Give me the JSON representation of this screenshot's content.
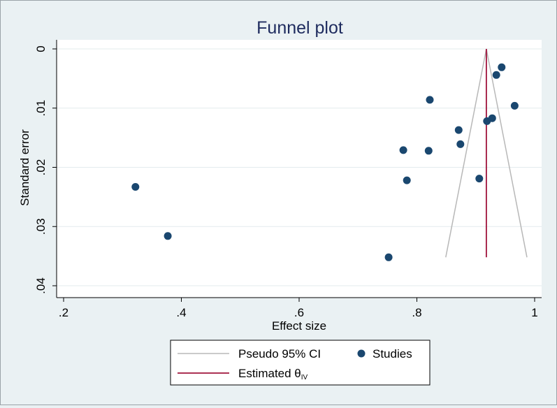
{
  "chart_data": {
    "type": "scatter",
    "title": "Funnel plot",
    "xlabel": "Effect size",
    "ylabel": "Standard error",
    "xlim": [
      0.2,
      1.0
    ],
    "ylim": [
      0.0,
      0.04
    ],
    "y_inverted": true,
    "xticks": [
      ".2",
      ".4",
      ".6",
      ".8",
      "1"
    ],
    "xtick_values": [
      0.2,
      0.4,
      0.6,
      0.8,
      1.0
    ],
    "yticks": [
      "0",
      ".01",
      ".02",
      ".03",
      ".04"
    ],
    "ytick_values": [
      0.0,
      0.01,
      0.02,
      0.03,
      0.04
    ],
    "grid": "horizontal",
    "legend_placement": "bottom",
    "series": [
      {
        "name": "Studies",
        "type": "scatter",
        "color": "#1a476f",
        "points": [
          {
            "x": 0.322,
            "y": 0.0233
          },
          {
            "x": 0.377,
            "y": 0.0316
          },
          {
            "x": 0.752,
            "y": 0.0352
          },
          {
            "x": 0.777,
            "y": 0.0171
          },
          {
            "x": 0.783,
            "y": 0.0222
          },
          {
            "x": 0.82,
            "y": 0.0172
          },
          {
            "x": 0.822,
            "y": 0.0086
          },
          {
            "x": 0.871,
            "y": 0.0137
          },
          {
            "x": 0.874,
            "y": 0.0161
          },
          {
            "x": 0.906,
            "y": 0.0219
          },
          {
            "x": 0.919,
            "y": 0.0122
          },
          {
            "x": 0.928,
            "y": 0.0117
          },
          {
            "x": 0.935,
            "y": 0.0044
          },
          {
            "x": 0.944,
            "y": 0.0031
          },
          {
            "x": 0.966,
            "y": 0.0096
          }
        ]
      },
      {
        "name": "Pseudo 95% CI",
        "type": "line",
        "color": "#b8b8b8",
        "points": [
          {
            "x": 0.849,
            "y": 0.0352
          },
          {
            "x": 0.918,
            "y": 0.0
          },
          {
            "x": 0.987,
            "y": 0.0352
          }
        ]
      },
      {
        "name": "Estimated θIV",
        "type": "line",
        "color": "#a0143c",
        "points": [
          {
            "x": 0.918,
            "y": 0.0
          },
          {
            "x": 0.918,
            "y": 0.0352
          }
        ]
      }
    ],
    "legend": {
      "ci_label": "Pseudo 95% CI",
      "studies_label": "Studies",
      "estimate_label": "Estimated θ",
      "estimate_subscript": "IV"
    }
  }
}
